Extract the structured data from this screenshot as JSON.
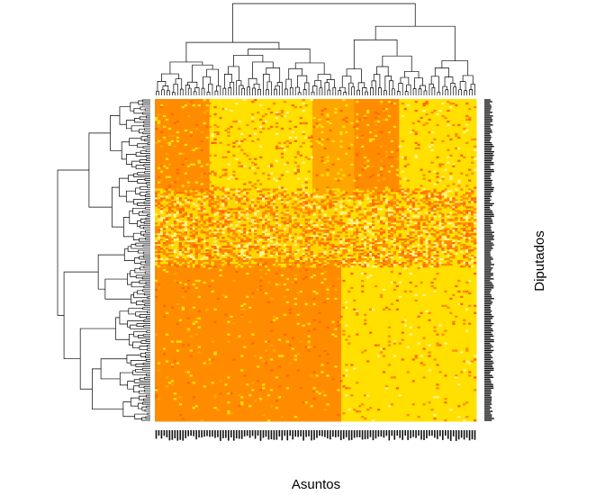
{
  "chart_data": {
    "type": "heatmap",
    "title": "",
    "xlabel": "Asuntos",
    "ylabel": "Diputados",
    "color_levels": [
      "#FF6A00",
      "#FF8C00",
      "#FFA500",
      "#FFD700",
      "#FFE000",
      "#FFF38A"
    ],
    "row_dendrogram": true,
    "col_dendrogram": true,
    "blocks": [
      {
        "rows": [
          0,
          0.3
        ],
        "cols": [
          0,
          0.17
        ],
        "level": 1
      },
      {
        "rows": [
          0,
          0.3
        ],
        "cols": [
          0.17,
          0.49
        ],
        "level": 4
      },
      {
        "rows": [
          0,
          0.3
        ],
        "cols": [
          0.49,
          0.62
        ],
        "level": 2
      },
      {
        "rows": [
          0,
          0.3
        ],
        "cols": [
          0.62,
          0.76
        ],
        "level": 1
      },
      {
        "rows": [
          0,
          0.3
        ],
        "cols": [
          0.76,
          1.0
        ],
        "level": 4
      },
      {
        "rows": [
          0.3,
          0.5
        ],
        "cols": [
          0,
          0.58
        ],
        "level": 3
      },
      {
        "rows": [
          0.3,
          0.5
        ],
        "cols": [
          0.58,
          1.0
        ],
        "level": 4
      },
      {
        "rows": [
          0.5,
          1.0
        ],
        "cols": [
          0,
          0.58
        ],
        "level": 1
      },
      {
        "rows": [
          0.5,
          1.0
        ],
        "cols": [
          0.58,
          1.0
        ],
        "level": 4
      }
    ]
  }
}
